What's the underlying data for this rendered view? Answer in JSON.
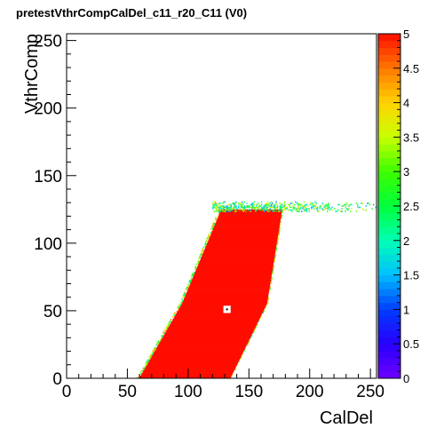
{
  "chart_data": {
    "type": "heatmap",
    "title": "pretestVthrCompCalDel_c11_r20_C11 (V0)",
    "xlabel": "CalDel",
    "ylabel": "VthrComp",
    "xlim": [
      0,
      255
    ],
    "ylim": [
      0,
      255
    ],
    "xticks": [
      "0",
      "50",
      "100",
      "150",
      "200",
      "250"
    ],
    "yticks": [
      "0",
      "50",
      "100",
      "150",
      "200",
      "250"
    ],
    "zlim": [
      0,
      5
    ],
    "zticks": [
      "0",
      "0.5",
      "1",
      "1.5",
      "2",
      "2.5",
      "3",
      "3.5",
      "4",
      "4.5",
      "5"
    ],
    "colorscale": "rainbow",
    "max_color": "#ff0d00",
    "saturated_region": {
      "description_points": [
        {
          "x": 60,
          "y": 0
        },
        {
          "x": 135,
          "y": 0
        },
        {
          "x": 165,
          "y": 55
        },
        {
          "x": 177,
          "y": 122
        },
        {
          "x": 127,
          "y": 124
        },
        {
          "x": 95,
          "y": 55
        }
      ],
      "value": 5
    },
    "plateau": {
      "y": 126,
      "x_from": 177,
      "x_to": 255
    },
    "empty_bins": [
      {
        "x": 132,
        "y": 51
      }
    ]
  }
}
